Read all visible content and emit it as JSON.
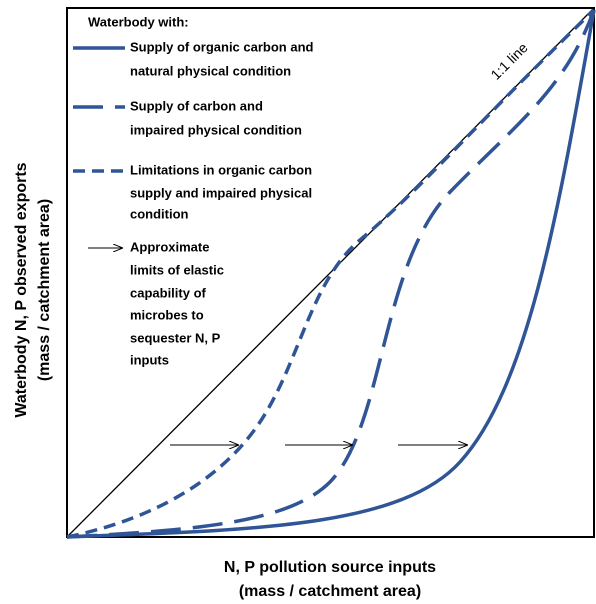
{
  "legend": {
    "title": "Waterbody with:",
    "items": [
      {
        "lines": [
          "Supply of organic carbon and",
          "natural physical condition"
        ]
      },
      {
        "lines": [
          "Supply of carbon and",
          "impaired physical condition"
        ]
      },
      {
        "lines": [
          "Limitations in organic carbon",
          "supply and impaired physical",
          "condition"
        ]
      }
    ],
    "arrow_note": {
      "lines": [
        "Approximate",
        "limits of elastic",
        "capability of",
        "microbes to",
        "sequester N, P",
        "inputs"
      ]
    }
  },
  "line_label": "1:1 line",
  "y_axis": {
    "lines": [
      "Waterbody N, P observed exports",
      "(mass / catchment area)"
    ]
  },
  "x_axis": {
    "lines": [
      "N, P pollution source inputs",
      "(mass / catchment area)"
    ]
  }
}
